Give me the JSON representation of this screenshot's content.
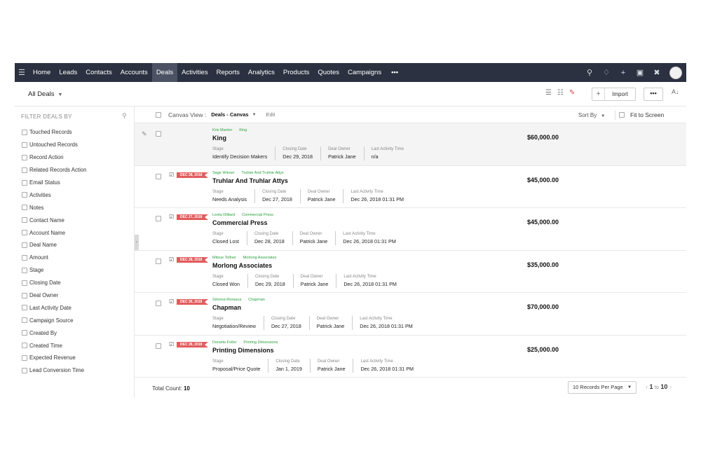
{
  "nav": {
    "items": [
      {
        "label": "Home"
      },
      {
        "label": "Leads"
      },
      {
        "label": "Contacts"
      },
      {
        "label": "Accounts"
      },
      {
        "label": "Deals",
        "active": true
      },
      {
        "label": "Activities"
      },
      {
        "label": "Reports"
      },
      {
        "label": "Analytics"
      },
      {
        "label": "Products"
      },
      {
        "label": "Quotes"
      },
      {
        "label": "Campaigns"
      }
    ],
    "more": "•••",
    "icons": [
      "search-icon",
      "bell-icon",
      "plus-icon",
      "calendar-icon",
      "tools-icon"
    ]
  },
  "toolbar": {
    "view_label": "All Deals",
    "import_label": "Import",
    "more_label": "•••"
  },
  "sidebar": {
    "heading": "FILTER DEALS BY",
    "filters": [
      "Touched Records",
      "Untouched Records",
      "Record Action",
      "Related Records Action",
      "Email Status",
      "Activities",
      "Notes",
      "Contact Name",
      "Account Name",
      "Deal Name",
      "Amount",
      "Stage",
      "Closing Date",
      "Deal Owner",
      "Last Activity Date",
      "Campaign Source",
      "Created By",
      "Created Time",
      "Expected Revenue",
      "Lead Conversion Time"
    ]
  },
  "canvas": {
    "label": "Canvas View :",
    "value": "Deals - Canvas",
    "edit": "Edit",
    "sort_label": "Sort By",
    "fit_label": "Fit to Screen"
  },
  "field_labels": {
    "stage": "Stage",
    "closing_date": "Closing Date",
    "deal_owner": "Deal Owner",
    "last_activity": "Last Activity Time"
  },
  "records": [
    {
      "contact": "Kris Marrier",
      "account": "King",
      "name": "King",
      "tag": "",
      "stage": "Identify Decision Makers",
      "closing_date": "Dec 29, 2018",
      "deal_owner": "Patrick Jane",
      "last_activity": "n/a",
      "amount": "$60,000.00"
    },
    {
      "contact": "Sage Wieser",
      "account": "Truhlar And Truhlar Attys",
      "name": "Truhlar And Truhlar Attys",
      "tag": "DEC 28, 2018",
      "stage": "Needs Analysis",
      "closing_date": "Dec 27, 2018",
      "deal_owner": "Patrick Jane",
      "last_activity": "Dec 26, 2018 01:31 PM",
      "amount": "$45,000.00"
    },
    {
      "contact": "Leota Dilliard",
      "account": "Commercial Press",
      "name": "Commercial Press",
      "tag": "DEC 27, 2018",
      "stage": "Closed Lost",
      "closing_date": "Dec 28, 2018",
      "deal_owner": "Patrick Jane",
      "last_activity": "Dec 26, 2018 01:31 PM",
      "amount": "$45,000.00"
    },
    {
      "contact": "Mitsue Tollner",
      "account": "Morlong Associates",
      "name": "Morlong Associates",
      "tag": "DEC 28, 2018",
      "stage": "Closed Won",
      "closing_date": "Dec 29, 2018",
      "deal_owner": "Patrick Jane",
      "last_activity": "Dec 26, 2018 01:31 PM",
      "amount": "$35,000.00"
    },
    {
      "contact": "Simona Morasca",
      "account": "Chapman",
      "name": "Chapman",
      "tag": "DEC 26, 2018",
      "stage": "Negotiation/Review",
      "closing_date": "Dec 27, 2018",
      "deal_owner": "Patrick Jane",
      "last_activity": "Dec 26, 2018 01:31 PM",
      "amount": "$70,000.00"
    },
    {
      "contact": "Donette Foller",
      "account": "Printing Dimensions",
      "name": "Printing Dimensions",
      "tag": "DEC 28, 2018",
      "stage": "Proposal/Price Quote",
      "closing_date": "Jan 1, 2019",
      "deal_owner": "Patrick Jane",
      "last_activity": "Dec 26, 2018 01:31 PM",
      "amount": "$25,000.00"
    }
  ],
  "footer": {
    "total_label": "Total Count:",
    "total_value": "10",
    "per_page": "10 Records Per Page",
    "page_from": "1",
    "page_to_word": "to",
    "page_to": "10"
  },
  "colors": {
    "nav_bg": "#2b3140",
    "tag_red": "#e25b5b",
    "link_green": "#2aa13f"
  }
}
